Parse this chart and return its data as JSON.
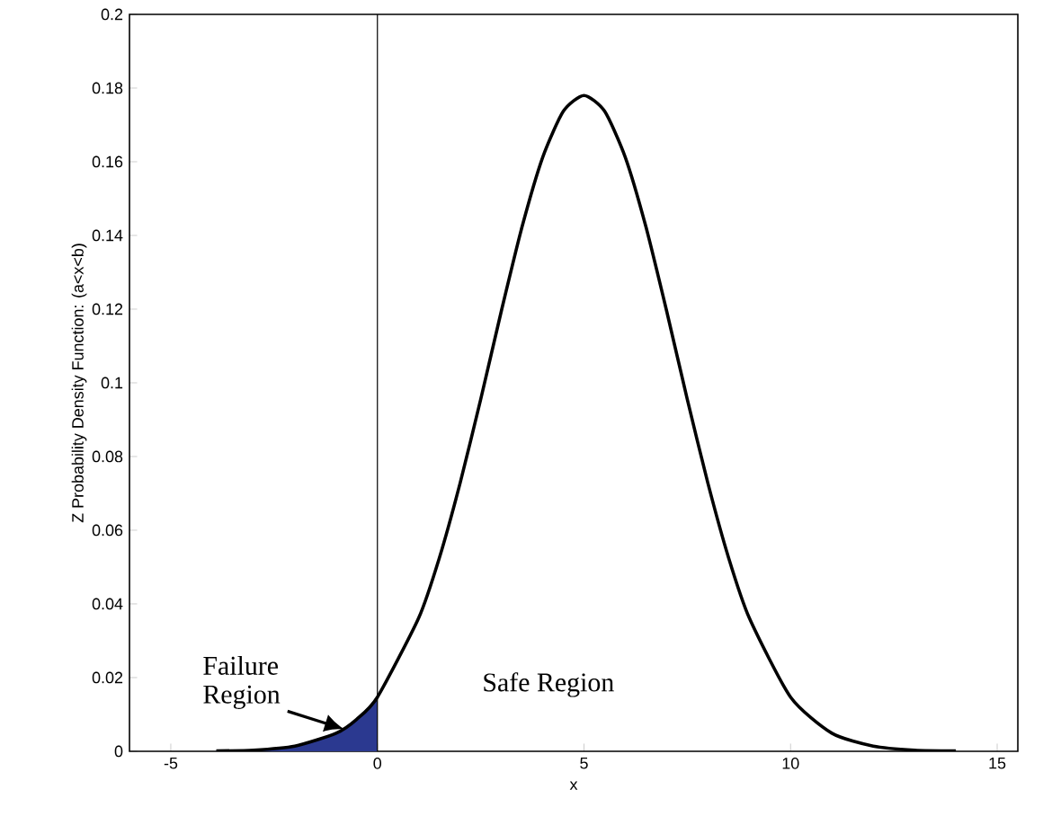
{
  "chart_data": {
    "type": "line",
    "xlabel": "x",
    "ylabel": "Z Probability Density Function: (a<x<b)",
    "xlim": [
      -6,
      15.5
    ],
    "ylim": [
      0,
      0.2
    ],
    "xticks": [
      -5,
      0,
      5,
      10,
      15
    ],
    "yticks": [
      0,
      0.02,
      0.04,
      0.06,
      0.08,
      0.1,
      0.12,
      0.14,
      0.16,
      0.18,
      0.2
    ],
    "grid": false,
    "series": [
      {
        "type": "area",
        "color": "#2b3990",
        "x": [
          -3.9,
          -3,
          -2,
          -1,
          -0.5,
          0
        ],
        "values": [
          0.0001,
          0.0003,
          0.0014,
          0.0049,
          0.0087,
          0.0147
        ]
      },
      {
        "color": "#000000",
        "x": [
          -3.9,
          -3,
          -2,
          -1,
          -0.5,
          0,
          1,
          1.5,
          2,
          2.5,
          3,
          3.5,
          4,
          4.5,
          5,
          5.5,
          6,
          6.5,
          7,
          7.5,
          8,
          8.5,
          9,
          10,
          11,
          12,
          13,
          14
        ],
        "values": [
          0.0001,
          0.0003,
          0.0014,
          0.0049,
          0.0087,
          0.0147,
          0.0362,
          0.0525,
          0.0727,
          0.0955,
          0.1195,
          0.1423,
          0.1612,
          0.1737,
          0.178,
          0.1737,
          0.1612,
          0.1423,
          0.1195,
          0.0955,
          0.0727,
          0.0525,
          0.0362,
          0.0147,
          0.0049,
          0.0014,
          0.0003,
          0.0001
        ]
      }
    ],
    "ref_lines": [
      {
        "axis": "x",
        "value": 0,
        "color": "#000000"
      }
    ],
    "annotations": [
      {
        "text": "Failure Region",
        "x": -0.8,
        "y": 0.006
      },
      "Safe Region"
    ]
  }
}
